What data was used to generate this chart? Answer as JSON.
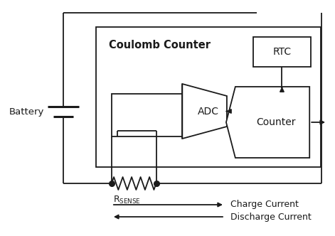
{
  "bg_color": "#ffffff",
  "line_color": "#1a1a1a",
  "coulomb_label": "Coulomb Counter",
  "rtc_label": "RTC",
  "counter_label": "Counter",
  "adc_label": "ADC",
  "battery_label": "Battery",
  "rsense_label": "R",
  "rsense_sub": "SENSE",
  "charge_label": "Charge Current",
  "discharge_label": "Discharge Current"
}
